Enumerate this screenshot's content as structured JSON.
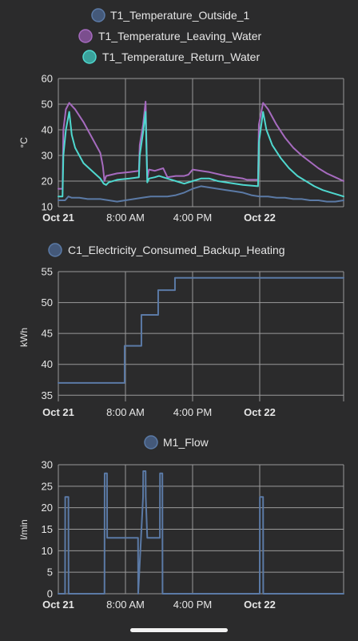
{
  "colors": {
    "background": "#2b2b2c",
    "grid": "#9a9a9a",
    "text": "#e6e6e6",
    "outside": "#5b7aa6",
    "leaving": "#a66bbf",
    "return": "#4fd8cf",
    "electricity": "#5b7aa6",
    "flow": "#5b7aa6"
  },
  "chart_data": [
    {
      "type": "line",
      "ylabel": "°C",
      "ylim": [
        10,
        60
      ],
      "yticks": [
        10,
        20,
        30,
        40,
        50,
        60
      ],
      "xlim_hours": [
        0,
        34
      ],
      "xticks": [
        {
          "label": "Oct 21",
          "hour": 0,
          "bold": true
        },
        {
          "label": "8:00 AM",
          "hour": 8,
          "bold": false
        },
        {
          "label": "4:00 PM",
          "hour": 16,
          "bold": false
        },
        {
          "label": "Oct 22",
          "hour": 24,
          "bold": true
        }
      ],
      "series": [
        {
          "name": "T1_Temperature_Outside_1",
          "color": "#5b7aa6",
          "x": [
            0,
            0.8,
            1.2,
            1.6,
            2.5,
            3.5,
            5,
            6,
            7,
            8,
            9,
            10,
            11,
            12,
            13,
            14,
            15,
            16,
            17,
            18,
            19,
            20,
            21,
            22,
            23,
            24,
            25,
            26,
            27,
            28,
            29,
            30,
            31,
            32,
            33,
            34
          ],
          "y": [
            12.5,
            12.5,
            14,
            13.5,
            13.5,
            13,
            13,
            12.5,
            12,
            12.5,
            13,
            13.5,
            14,
            14,
            14,
            14.5,
            15.5,
            17,
            18,
            17.5,
            17,
            16.5,
            16,
            15.5,
            14.5,
            14,
            14,
            13.5,
            13.5,
            13,
            13,
            12.5,
            12.5,
            12,
            12,
            12.5
          ]
        },
        {
          "name": "T1_Temperature_Leaving_Water",
          "color": "#a66bbf",
          "x": [
            0,
            0.5,
            0.6,
            0.9,
            1.3,
            2,
            3,
            4,
            5,
            5.3,
            5.5,
            5.7,
            7,
            8.5,
            9.6,
            9.7,
            10.1,
            10.4,
            10.6,
            10.8,
            11.5,
            12,
            12.5,
            13,
            14,
            15,
            15.5,
            16,
            18,
            20,
            22,
            22.5,
            23.8,
            23.9,
            24.4,
            25,
            26,
            27,
            28,
            29,
            30,
            31,
            32,
            33,
            34
          ],
          "y": [
            17,
            17,
            40,
            48,
            50.5,
            48,
            43,
            37,
            31,
            26,
            20,
            22,
            23,
            23.5,
            24,
            34,
            42,
            51,
            21,
            24.5,
            24,
            24.5,
            25,
            21.5,
            22,
            22,
            22.5,
            24.5,
            23.5,
            22,
            21,
            20.5,
            20.5,
            42,
            50.5,
            48,
            42,
            37,
            33,
            30,
            27.5,
            25,
            23,
            21.5,
            20
          ]
        },
        {
          "name": "T1_Temperature_Return_Water",
          "color": "#4fd8cf",
          "x": [
            0,
            0.5,
            0.6,
            0.9,
            1.3,
            1.6,
            2,
            2.5,
            3,
            4,
            5,
            5.4,
            5.7,
            6,
            7,
            8.5,
            9.6,
            9.7,
            10.1,
            10.4,
            10.6,
            10.8,
            11.5,
            12,
            13,
            14,
            15,
            16,
            17,
            18,
            19,
            20,
            22,
            23.8,
            23.9,
            24.4,
            24.8,
            25.5,
            26.5,
            27.5,
            28.5,
            29.5,
            30.5,
            31.5,
            32.5,
            33.5,
            34
          ],
          "y": [
            14,
            14,
            30,
            40,
            47,
            38,
            33,
            30,
            27,
            24,
            21,
            19,
            18.5,
            19.5,
            20.5,
            21,
            21.5,
            30,
            39,
            47,
            19.5,
            21,
            21.5,
            22,
            21,
            20,
            19,
            20,
            21,
            21,
            20,
            19.5,
            18.5,
            18,
            35,
            47,
            40,
            34,
            29,
            25,
            22,
            20,
            18,
            16.5,
            15.5,
            14.5,
            14
          ]
        }
      ]
    },
    {
      "type": "line",
      "step": true,
      "ylabel": "kWh",
      "ylim": [
        34,
        55
      ],
      "yticks": [
        35,
        40,
        45,
        50,
        55
      ],
      "xlim_hours": [
        0,
        34
      ],
      "xticks": [
        {
          "label": "Oct 21",
          "hour": 0,
          "bold": true
        },
        {
          "label": "8:00 AM",
          "hour": 8,
          "bold": false
        },
        {
          "label": "4:00 PM",
          "hour": 16,
          "bold": false
        },
        {
          "label": "Oct 22",
          "hour": 24,
          "bold": true
        }
      ],
      "series": [
        {
          "name": "C1_Electricity_Consumed_Backup_Heating",
          "color": "#5b7aa6",
          "x": [
            0,
            7.9,
            9.9,
            11.9,
            13.9,
            34
          ],
          "y": [
            37,
            43,
            48,
            52,
            54,
            54
          ]
        }
      ]
    },
    {
      "type": "line",
      "ylabel": "l/min",
      "ylim": [
        0,
        30
      ],
      "yticks": [
        0,
        5,
        10,
        15,
        20,
        25,
        30
      ],
      "xlim_hours": [
        0,
        34
      ],
      "xticks": [
        {
          "label": "Oct 21",
          "hour": 0,
          "bold": true
        },
        {
          "label": "8:00 AM",
          "hour": 8,
          "bold": false
        },
        {
          "label": "4:00 PM",
          "hour": 16,
          "bold": false
        },
        {
          "label": "Oct 22",
          "hour": 24,
          "bold": true
        }
      ],
      "series": [
        {
          "name": "M1_Flow",
          "color": "#5b7aa6",
          "x": [
            0,
            0.8,
            0.82,
            1.2,
            1.22,
            5.5,
            5.52,
            5.8,
            5.82,
            6.0,
            7.0,
            9.5,
            9.52,
            10.1,
            10.12,
            10.4,
            10.42,
            10.6,
            10.62,
            11.5,
            12.1,
            12.12,
            12.4,
            12.42,
            24.0,
            24.02,
            24.4,
            24.42,
            34
          ],
          "y": [
            0,
            0,
            22.5,
            22.5,
            0,
            0,
            28,
            28,
            13,
            13,
            13,
            13,
            0,
            22.5,
            28.5,
            28.5,
            22.5,
            13,
            13,
            13,
            13,
            28,
            28,
            0,
            0,
            22.5,
            22.5,
            0,
            0
          ]
        }
      ]
    }
  ]
}
